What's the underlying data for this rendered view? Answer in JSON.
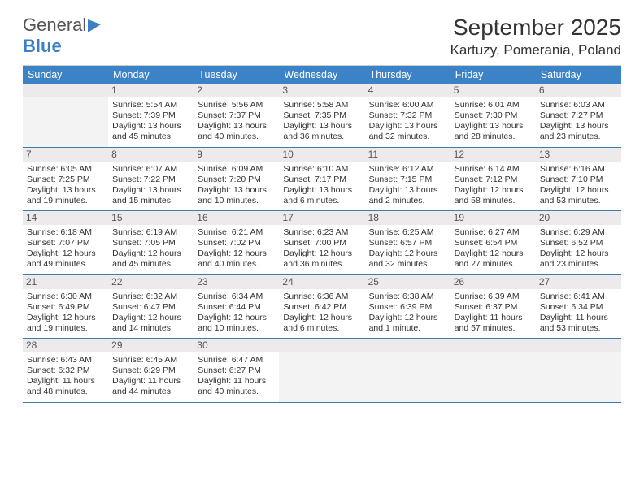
{
  "logo": {
    "word1": "General",
    "word2": "Blue"
  },
  "header": {
    "month_title": "September 2025",
    "location": "Kartuzy, Pomerania, Poland"
  },
  "colors": {
    "accent": "#3b83c6",
    "daybar": "#eceaea",
    "rule": "#3b7fa8"
  },
  "weekdays": [
    "Sunday",
    "Monday",
    "Tuesday",
    "Wednesday",
    "Thursday",
    "Friday",
    "Saturday"
  ],
  "calendar": {
    "first_weekday_index": 1,
    "days": [
      {
        "n": 1,
        "sunrise": "5:54 AM",
        "sunset": "7:39 PM",
        "day_h": 13,
        "day_m": 45
      },
      {
        "n": 2,
        "sunrise": "5:56 AM",
        "sunset": "7:37 PM",
        "day_h": 13,
        "day_m": 40
      },
      {
        "n": 3,
        "sunrise": "5:58 AM",
        "sunset": "7:35 PM",
        "day_h": 13,
        "day_m": 36
      },
      {
        "n": 4,
        "sunrise": "6:00 AM",
        "sunset": "7:32 PM",
        "day_h": 13,
        "day_m": 32
      },
      {
        "n": 5,
        "sunrise": "6:01 AM",
        "sunset": "7:30 PM",
        "day_h": 13,
        "day_m": 28
      },
      {
        "n": 6,
        "sunrise": "6:03 AM",
        "sunset": "7:27 PM",
        "day_h": 13,
        "day_m": 23
      },
      {
        "n": 7,
        "sunrise": "6:05 AM",
        "sunset": "7:25 PM",
        "day_h": 13,
        "day_m": 19
      },
      {
        "n": 8,
        "sunrise": "6:07 AM",
        "sunset": "7:22 PM",
        "day_h": 13,
        "day_m": 15
      },
      {
        "n": 9,
        "sunrise": "6:09 AM",
        "sunset": "7:20 PM",
        "day_h": 13,
        "day_m": 10
      },
      {
        "n": 10,
        "sunrise": "6:10 AM",
        "sunset": "7:17 PM",
        "day_h": 13,
        "day_m": 6
      },
      {
        "n": 11,
        "sunrise": "6:12 AM",
        "sunset": "7:15 PM",
        "day_h": 13,
        "day_m": 2
      },
      {
        "n": 12,
        "sunrise": "6:14 AM",
        "sunset": "7:12 PM",
        "day_h": 12,
        "day_m": 58
      },
      {
        "n": 13,
        "sunrise": "6:16 AM",
        "sunset": "7:10 PM",
        "day_h": 12,
        "day_m": 53
      },
      {
        "n": 14,
        "sunrise": "6:18 AM",
        "sunset": "7:07 PM",
        "day_h": 12,
        "day_m": 49
      },
      {
        "n": 15,
        "sunrise": "6:19 AM",
        "sunset": "7:05 PM",
        "day_h": 12,
        "day_m": 45
      },
      {
        "n": 16,
        "sunrise": "6:21 AM",
        "sunset": "7:02 PM",
        "day_h": 12,
        "day_m": 40
      },
      {
        "n": 17,
        "sunrise": "6:23 AM",
        "sunset": "7:00 PM",
        "day_h": 12,
        "day_m": 36
      },
      {
        "n": 18,
        "sunrise": "6:25 AM",
        "sunset": "6:57 PM",
        "day_h": 12,
        "day_m": 32
      },
      {
        "n": 19,
        "sunrise": "6:27 AM",
        "sunset": "6:54 PM",
        "day_h": 12,
        "day_m": 27
      },
      {
        "n": 20,
        "sunrise": "6:29 AM",
        "sunset": "6:52 PM",
        "day_h": 12,
        "day_m": 23
      },
      {
        "n": 21,
        "sunrise": "6:30 AM",
        "sunset": "6:49 PM",
        "day_h": 12,
        "day_m": 19
      },
      {
        "n": 22,
        "sunrise": "6:32 AM",
        "sunset": "6:47 PM",
        "day_h": 12,
        "day_m": 14
      },
      {
        "n": 23,
        "sunrise": "6:34 AM",
        "sunset": "6:44 PM",
        "day_h": 12,
        "day_m": 10
      },
      {
        "n": 24,
        "sunrise": "6:36 AM",
        "sunset": "6:42 PM",
        "day_h": 12,
        "day_m": 6
      },
      {
        "n": 25,
        "sunrise": "6:38 AM",
        "sunset": "6:39 PM",
        "day_h": 12,
        "day_m": 1
      },
      {
        "n": 26,
        "sunrise": "6:39 AM",
        "sunset": "6:37 PM",
        "day_h": 11,
        "day_m": 57
      },
      {
        "n": 27,
        "sunrise": "6:41 AM",
        "sunset": "6:34 PM",
        "day_h": 11,
        "day_m": 53
      },
      {
        "n": 28,
        "sunrise": "6:43 AM",
        "sunset": "6:32 PM",
        "day_h": 11,
        "day_m": 48
      },
      {
        "n": 29,
        "sunrise": "6:45 AM",
        "sunset": "6:29 PM",
        "day_h": 11,
        "day_m": 44
      },
      {
        "n": 30,
        "sunrise": "6:47 AM",
        "sunset": "6:27 PM",
        "day_h": 11,
        "day_m": 40
      }
    ]
  },
  "labels": {
    "sunrise": "Sunrise:",
    "sunset": "Sunset:",
    "daylight": "Daylight:",
    "hours": "hours",
    "and": "and",
    "minutes": "minutes.",
    "minute": "minute."
  }
}
